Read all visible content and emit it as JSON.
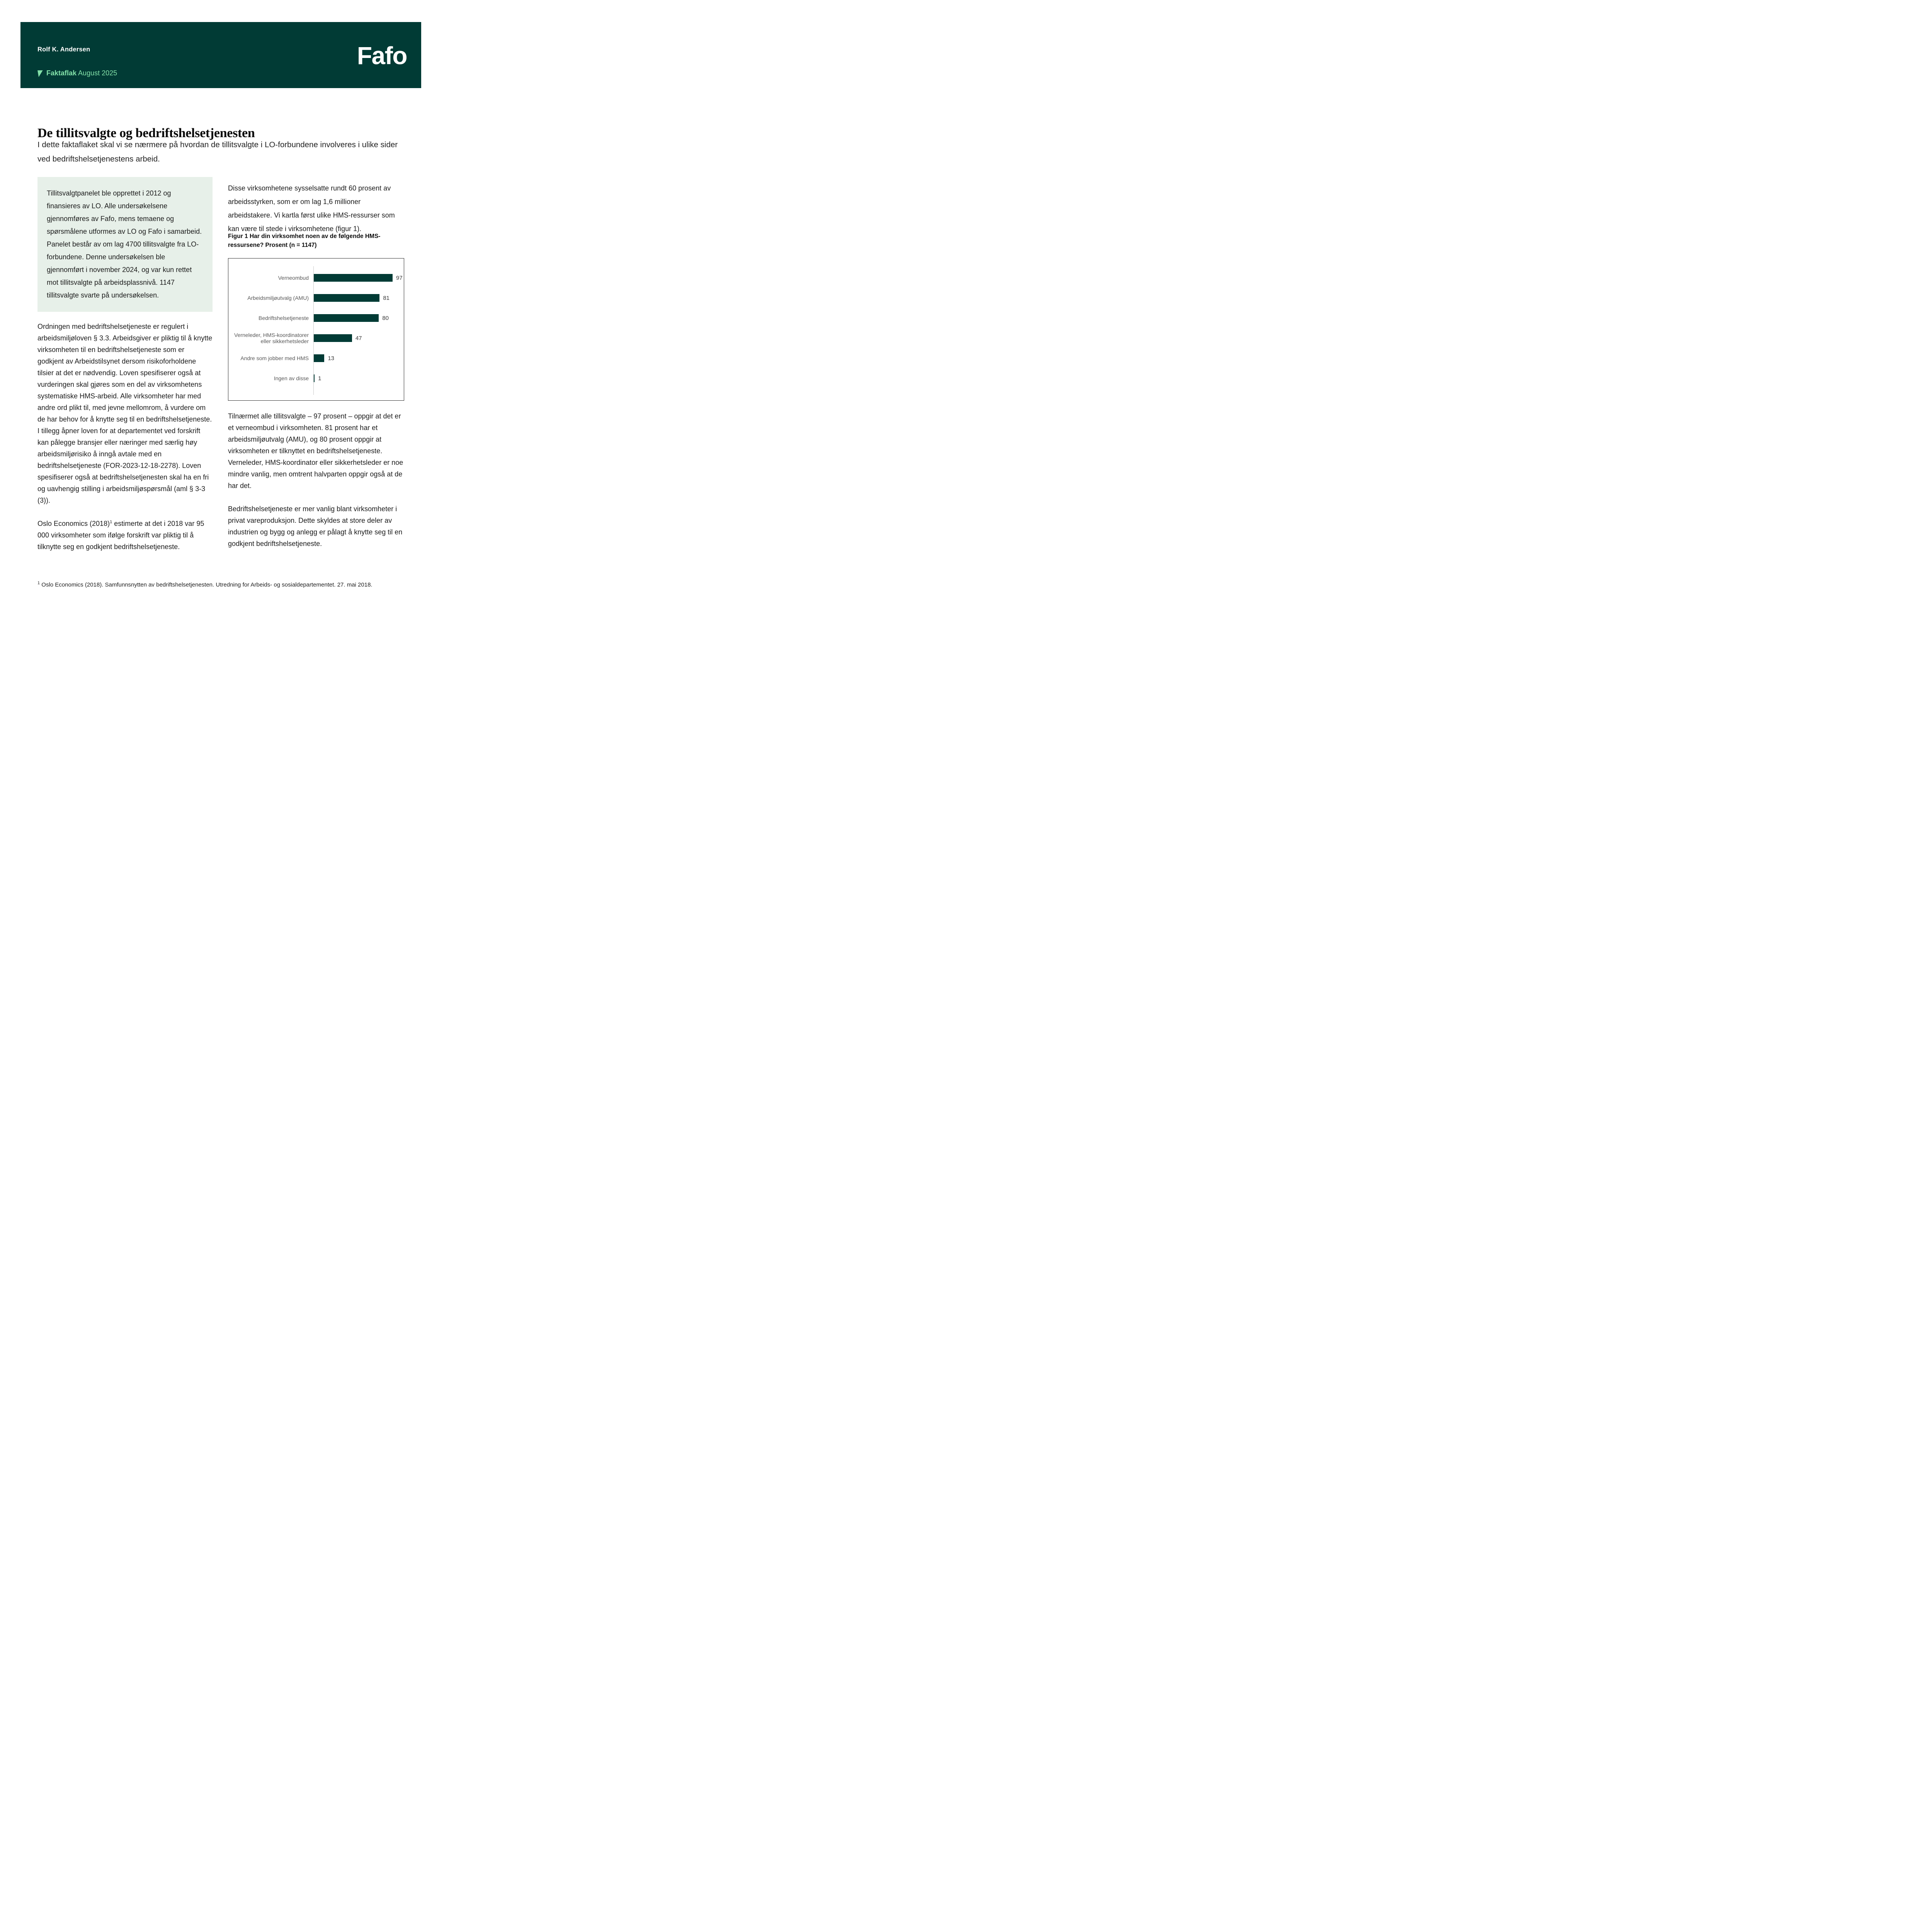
{
  "header": {
    "author": "Rolf K. Andersen",
    "series": "Faktaflak",
    "issue": " August 2025",
    "logo": "Fafo"
  },
  "article": {
    "title": "De tillitsvalgte og bedriftshelsetjenesten",
    "intro": "I dette faktaflaket skal vi se nærmere på hvordan de tillitsvalgte i LO-forbundene involveres i ulike sider ved bedriftshelsetjenestens arbeid.",
    "infobox": "Tillitsvalgtpanelet ble opprettet i 2012 og finansieres av LO. Alle undersøkelsene gjennomføres av Fafo, mens temaene og spørsmålene utformes av LO og Fafo i samarbeid. Panelet består av om lag 4700 tillitsvalgte fra LO-forbundene. Denne undersøkelsen ble gjennomført i november 2024, og var kun rettet mot tillitsvalgte på arbeidsplassnivå. 1147 tillitsvalgte svarte på undersøkelsen.",
    "left_p1": "Ordningen med bedriftshelsetjeneste er regulert i arbeidsmiljøloven § 3.3. Arbeidsgiver er pliktig til å knytte virksomheten til en bedriftshelsetjeneste som er godkjent av Arbeidstilsynet dersom risikoforholdene tilsier at det er nødvendig. Loven spesifiserer også at vurderingen skal gjøres som en del av virksomhetens systematiske HMS-arbeid. Alle virksomheter har med andre ord plikt til, med jevne mellomrom, å vurdere om de har behov for å knytte seg til en bedriftshelsetjeneste. I tillegg åpner loven for at departementet ved forskrift kan pålegge bransjer eller næringer med særlig høy arbeidsmiljørisiko å inngå avtale med en bedriftshelsetjeneste (FOR-2023-12-18-2278). Loven spesifiserer også at bedriftshelsetjenesten skal ha en fri og uavhengig stilling i arbeidsmiljøspørsmål (aml § 3-3 (3)).",
    "left_p2_pre": "Oslo Economics (2018)",
    "left_p2_sup": "1",
    "left_p2_post": " estimerte at det i 2018 var 95 000 virksomheter som ifølge forskrift var pliktig til å tilknytte seg en godkjent bedriftshelsetjeneste.",
    "right_p1": "Disse virksomhetene sysselsatte rundt 60 prosent av arbeidsstyrken, som er om lag 1,6 millioner arbeidstakere. Vi kartla først ulike HMS-ressurser som kan være til stede i virksomhetene (figur 1).",
    "figure_caption": "Figur 1 Har din virksomhet noen av de følgende HMS-ressursene? Prosent (n = 1147)",
    "right_p2": "Tilnærmet alle tillitsvalgte – 97 prosent – oppgir at det er et verneombud i virksomheten. 81 prosent har et arbeidsmiljøutvalg (AMU), og 80 prosent oppgir at virksomheten er tilknyttet en bedriftshelsetjeneste. Verneleder, HMS-koordinator eller sikkerhetsleder er noe mindre vanlig, men omtrent halvparten oppgir også at de har det.",
    "right_p3": "Bedriftshelsetjeneste er mer vanlig blant virksomheter i privat vareproduksjon. Dette skyldes at store deler av industrien og bygg og anlegg er pålagt å knytte seg til en godkjent bedriftshelsetjeneste.",
    "footnote_sup": "1",
    "footnote": " Oslo Economics (2018). Samfunnsnytten av bedriftshelsetjenesten. Utredning for Arbeids- og sosialdepartementet. 27. mai 2018."
  },
  "chart_data": {
    "type": "bar",
    "orientation": "horizontal",
    "title": "Figur 1 Har din virksomhet noen av de følgende HMS-ressursene? Prosent (n = 1147)",
    "categories": [
      "Verneombud",
      "Arbeidsmiljøutvalg (AMU)",
      "Bedriftshelsetjeneste",
      "Verneleder, HMS-koordinatorer eller sikkerhetsleder",
      "Andre som jobber med HMS",
      "Ingen av disse"
    ],
    "values": [
      97,
      81,
      80,
      47,
      13,
      1
    ],
    "xlim": [
      0,
      100
    ],
    "value_labels": true,
    "grid": false,
    "legend": false,
    "bar_color": "#013B35",
    "axis_line_color": "#C9C9C9",
    "label_color": "#595959",
    "value_color": "#3A3A3A"
  },
  "colors": {
    "header_bg": "#013B35",
    "brand_green": "#82E0A8",
    "infobox_bg": "#E7F0E9",
    "text": "#1C1C1C",
    "white": "#FFFFFF"
  }
}
